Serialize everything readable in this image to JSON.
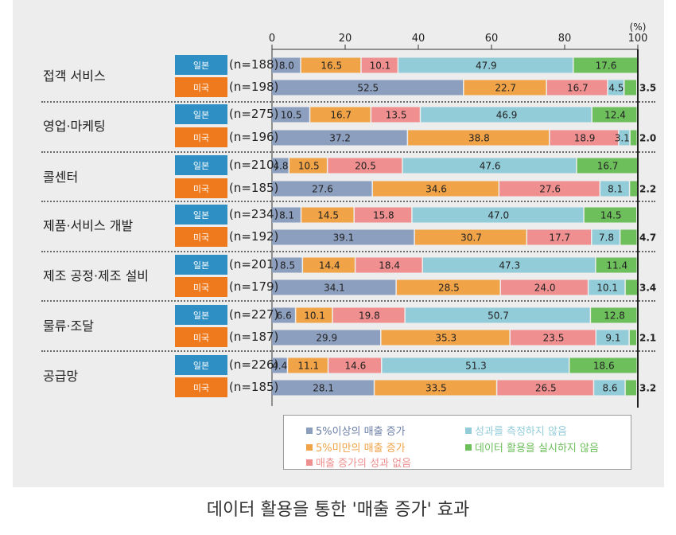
{
  "chart_data": {
    "type": "bar",
    "stacked": true,
    "orientation": "horizontal",
    "title": "데이터 활용을 통한 '매출 증가' 효과",
    "unit_label": "(%)",
    "xlim": [
      0,
      100
    ],
    "xticks": [
      0,
      20,
      40,
      60,
      80,
      100
    ],
    "series": [
      {
        "name": "5%이상의 매출 증가",
        "color": "#8c9fbf"
      },
      {
        "name": "5%미만의 매출 증가",
        "color": "#f0a347"
      },
      {
        "name": "매출 증가의 성과 없음",
        "color": "#ef8f8f"
      },
      {
        "name": "성과를 측정하지 않음",
        "color": "#92ccd9"
      },
      {
        "name": "데이터 활용을 실시하지 않음",
        "color": "#6dbf5c"
      }
    ],
    "categories": [
      {
        "label": "접객 서비스",
        "rows": [
          {
            "country": "일본",
            "n": "(n=188)",
            "values": [
              8.0,
              16.5,
              10.1,
              47.9,
              17.6
            ],
            "labels": [
              "8.0",
              "16.5",
              "10.1",
              "47.9",
              "17.6"
            ]
          },
          {
            "country": "미국",
            "n": "(n=198)",
            "values": [
              52.5,
              22.7,
              16.7,
              4.5,
              3.5
            ],
            "labels": [
              "52.5",
              "22.7",
              "16.7",
              "4.5",
              "3.5"
            ]
          }
        ]
      },
      {
        "label": "영업·마케팅",
        "rows": [
          {
            "country": "일본",
            "n": "(n=275)",
            "values": [
              10.5,
              16.7,
              13.5,
              46.9,
              12.4
            ],
            "labels": [
              "10.5",
              "16.7",
              "13.5",
              "46.9",
              "12.4"
            ]
          },
          {
            "country": "미국",
            "n": "(n=196)",
            "values": [
              37.2,
              38.8,
              18.9,
              3.1,
              2.0
            ],
            "labels": [
              "37.2",
              "38.8",
              "18.9",
              "3.1",
              "2.0"
            ]
          }
        ]
      },
      {
        "label": "콜센터",
        "rows": [
          {
            "country": "일본",
            "n": "(n=210)",
            "values": [
              4.8,
              10.5,
              20.5,
              47.6,
              16.7
            ],
            "labels": [
              "4.8",
              "10.5",
              "20.5",
              "47.6",
              "16.7"
            ]
          },
          {
            "country": "미국",
            "n": "(n=185)",
            "values": [
              27.6,
              34.6,
              27.6,
              8.1,
              2.2
            ],
            "labels": [
              "27.6",
              "34.6",
              "27.6",
              "8.1",
              "2.2"
            ]
          }
        ]
      },
      {
        "label": "제품·서비스 개발",
        "rows": [
          {
            "country": "일본",
            "n": "(n=234)",
            "values": [
              8.1,
              14.5,
              15.8,
              47.0,
              14.5
            ],
            "labels": [
              "8.1",
              "14.5",
              "15.8",
              "47.0",
              "14.5"
            ]
          },
          {
            "country": "미국",
            "n": "(n=192)",
            "values": [
              39.1,
              30.7,
              17.7,
              7.8,
              4.7
            ],
            "labels": [
              "39.1",
              "30.7",
              "17.7",
              "7.8",
              "4.7"
            ]
          }
        ]
      },
      {
        "label": "제조 공정·제조 설비",
        "rows": [
          {
            "country": "일본",
            "n": "(n=201)",
            "values": [
              8.5,
              14.4,
              18.4,
              47.3,
              11.4
            ],
            "labels": [
              "8.5",
              "14.4",
              "18.4",
              "47.3",
              "11.4"
            ]
          },
          {
            "country": "미국",
            "n": "(n=179)",
            "values": [
              34.1,
              28.5,
              24.0,
              10.1,
              3.4
            ],
            "labels": [
              "34.1",
              "28.5",
              "24.0",
              "10.1",
              "3.4"
            ]
          }
        ]
      },
      {
        "label": "물류·조달",
        "rows": [
          {
            "country": "일본",
            "n": "(n=227)",
            "values": [
              6.6,
              10.1,
              19.8,
              50.7,
              12.8
            ],
            "labels": [
              "6.6",
              "10.1",
              "19.8",
              "50.7",
              "12.8"
            ]
          },
          {
            "country": "미국",
            "n": "(n=187)",
            "values": [
              29.9,
              35.3,
              23.5,
              9.1,
              2.1
            ],
            "labels": [
              "29.9",
              "35.3",
              "23.5",
              "9.1",
              "2.1"
            ]
          }
        ]
      },
      {
        "label": "공급망",
        "rows": [
          {
            "country": "일본",
            "n": "(n=226)",
            "values": [
              4.4,
              11.1,
              14.6,
              51.3,
              18.6
            ],
            "labels": [
              "4.4",
              "11.1",
              "14.6",
              "51.3",
              "18.6"
            ]
          },
          {
            "country": "미국",
            "n": "(n=185)",
            "values": [
              28.1,
              33.5,
              26.5,
              8.6,
              3.2
            ],
            "labels": [
              "28.1",
              "33.5",
              "26.5",
              "8.6",
              "3.2"
            ]
          }
        ]
      }
    ],
    "country_colors": {
      "일본": "#2e8fc4",
      "미국": "#ee7a1d"
    },
    "legend_placement": "bottom",
    "grid": false
  }
}
